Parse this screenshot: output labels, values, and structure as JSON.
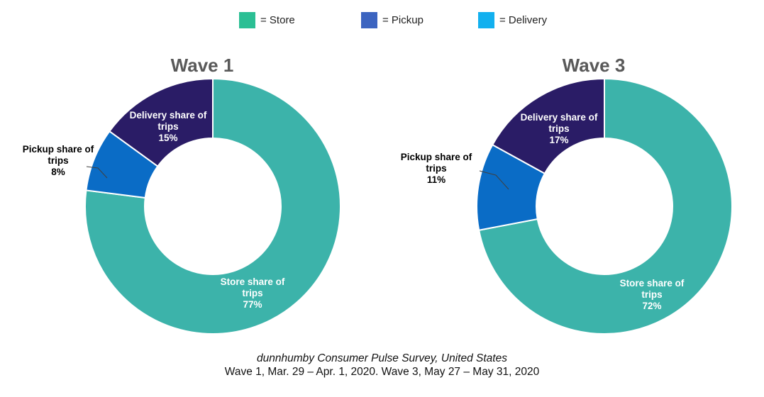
{
  "legend": [
    {
      "label": "= Store",
      "color": "#2bbf94"
    },
    {
      "label": "= Pickup",
      "color": "#3c64c0"
    },
    {
      "label": "= Delivery",
      "color": "#12b0ef"
    }
  ],
  "chart_data": [
    {
      "type": "pie",
      "title": "Wave 1",
      "slices": [
        {
          "name": "Store",
          "label": [
            "Store share of",
            "trips"
          ],
          "value": 77,
          "value_label": "77%",
          "color": "#3cb3aa"
        },
        {
          "name": "Pickup",
          "label": [
            "Pickup share of",
            "trips"
          ],
          "value": 8,
          "value_label": "8%",
          "color": "#0a6cc6"
        },
        {
          "name": "Delivery",
          "label": [
            "Delivery share of",
            "trips"
          ],
          "value": 15,
          "value_label": "15%",
          "color": "#2a1c66"
        }
      ]
    },
    {
      "type": "pie",
      "title": "Wave 3",
      "slices": [
        {
          "name": "Store",
          "label": [
            "Store share of",
            "trips"
          ],
          "value": 72,
          "value_label": "72%",
          "color": "#3cb3aa"
        },
        {
          "name": "Pickup",
          "label": [
            "Pickup share of",
            "trips"
          ],
          "value": 11,
          "value_label": "11%",
          "color": "#0a6cc6"
        },
        {
          "name": "Delivery",
          "label": [
            "Delivery share of",
            "trips"
          ],
          "value": 17,
          "value_label": "17%",
          "color": "#2a1c66"
        }
      ]
    }
  ],
  "footer": {
    "source": "dunnhumby Consumer Pulse Survey, United States",
    "dates": "Wave 1, Mar. 29 – Apr. 1, 2020. Wave 3, May 27 – May 31, 2020"
  }
}
